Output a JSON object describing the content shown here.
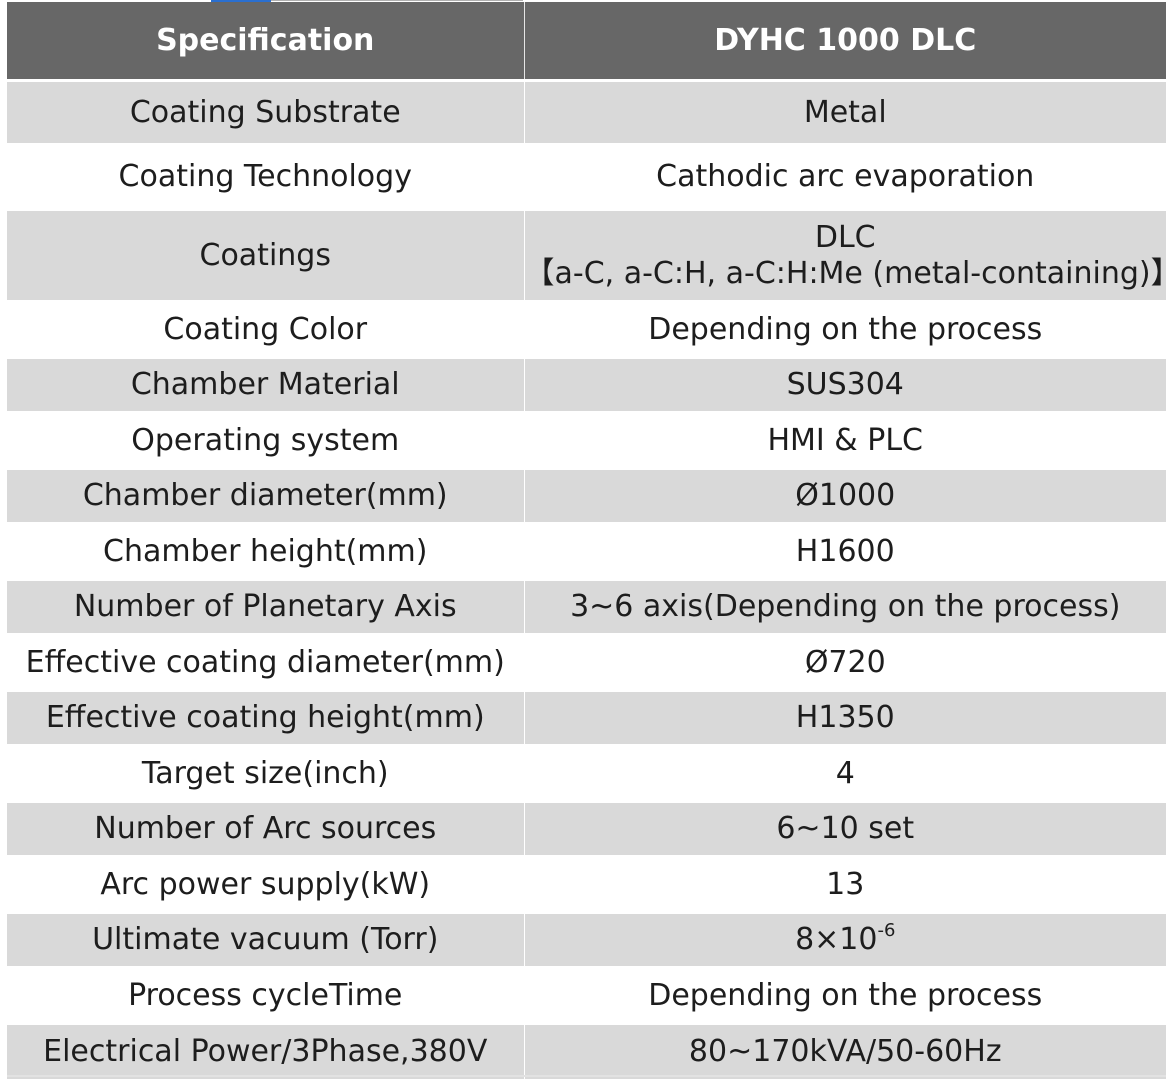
{
  "header": {
    "col1": "Specification",
    "col2": "DYHC 1000 DLC"
  },
  "rows": [
    {
      "label": "Coating Substrate",
      "value": "Metal"
    },
    {
      "label": "Coating Technology",
      "value": "Cathodic arc evaporation"
    },
    {
      "label": "Coatings",
      "value": "DLC",
      "value_line2": "【a-C, a-C:H, a-C:H:Me (metal-containing)】"
    },
    {
      "label": "Coating Color",
      "value": "Depending on the process"
    },
    {
      "label": "Chamber Material",
      "value": "SUS304"
    },
    {
      "label": "Operating system",
      "value": "HMI & PLC"
    },
    {
      "label": "Chamber diameter(mm)",
      "value": "Ø1000"
    },
    {
      "label": "Chamber height(mm)",
      "value": "H1600"
    },
    {
      "label": "Number of Planetary Axis",
      "value": "3~6 axis(Depending on the process)"
    },
    {
      "label": "Effective coating diameter(mm)",
      "value": "Ø720"
    },
    {
      "label": "Effective coating height(mm)",
      "value": "H1350"
    },
    {
      "label": "Target size(inch)",
      "value": "4"
    },
    {
      "label": "Number of Arc sources",
      "value": "6~10 set"
    },
    {
      "label": "Arc power supply(kW)",
      "value": "13"
    },
    {
      "label": "Ultimate vacuum (Torr)",
      "value": "8×10",
      "value_sup": "-6"
    },
    {
      "label": "Process cycleTime",
      "value": "Depending on the process"
    },
    {
      "label": "Electrical Power/3Phase,380V",
      "value": "80~170kVA/50-60Hz"
    }
  ],
  "colors": {
    "header_bg": "#676767",
    "row_shade": "#d9d9d9",
    "row_plain": "#ffffff",
    "accent": "#2a6fd0"
  }
}
